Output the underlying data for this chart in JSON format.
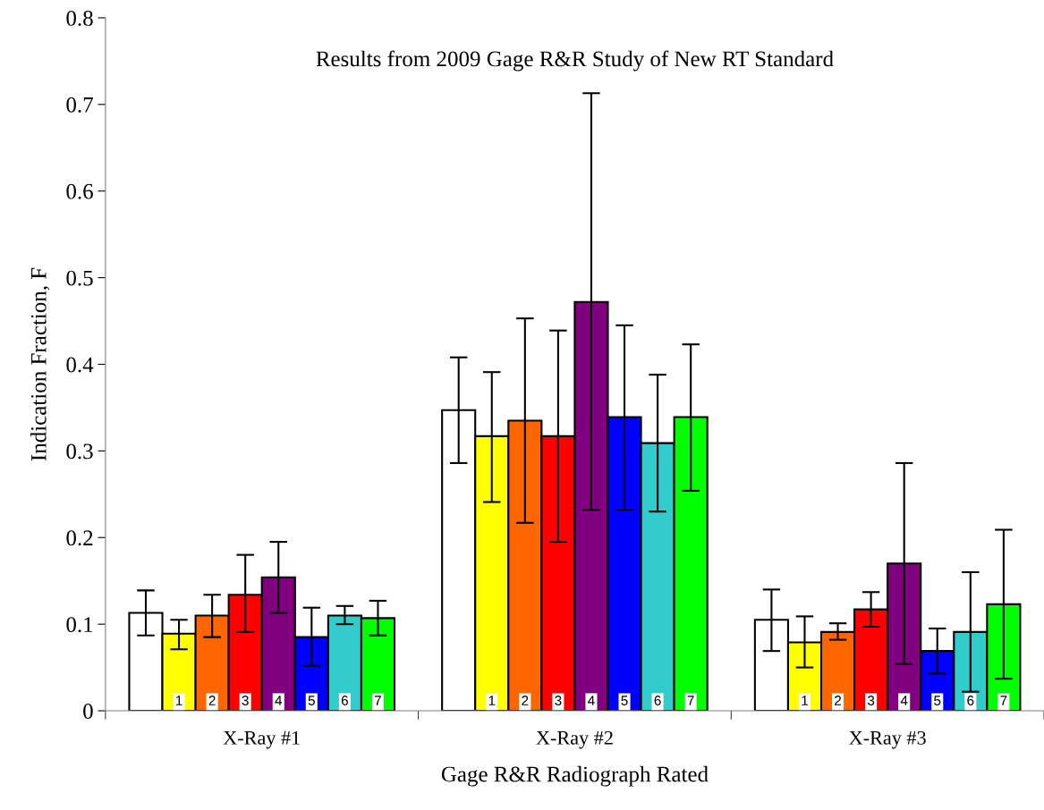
{
  "chart_data": {
    "type": "bar",
    "title": "Results from 2009 Gage R&R Study of New RT Standard",
    "xlabel": "Gage R&R Radiograph Rated",
    "ylabel": "Indication Fraction, F",
    "categories": [
      "X-Ray #1",
      "X-Ray #2",
      "X-Ray #3"
    ],
    "ylim": [
      0,
      0.8
    ],
    "yticks": [
      0,
      0.1,
      0.2,
      0.3,
      0.4,
      0.5,
      0.6,
      0.7,
      0.8
    ],
    "grid": false,
    "legend": false,
    "series": [
      {
        "color": "#ffffff",
        "values": [
          0.113,
          0.347,
          0.105
        ],
        "errors": [
          [
            0.087,
            0.139
          ],
          [
            0.286,
            0.408
          ],
          [
            0.069,
            0.14
          ]
        ]
      },
      {
        "name": "1",
        "color": "#ffff00",
        "values": [
          0.089,
          0.317,
          0.079
        ],
        "errors": [
          [
            0.071,
            0.105
          ],
          [
            0.241,
            0.391
          ],
          [
            0.05,
            0.109
          ]
        ]
      },
      {
        "name": "2",
        "color": "#ff6600",
        "values": [
          0.11,
          0.335,
          0.091
        ],
        "errors": [
          [
            0.085,
            0.134
          ],
          [
            0.217,
            0.453
          ],
          [
            0.082,
            0.101
          ]
        ]
      },
      {
        "name": "3",
        "color": "#ff0000",
        "values": [
          0.134,
          0.317,
          0.117
        ],
        "errors": [
          [
            0.091,
            0.18
          ],
          [
            0.195,
            0.439
          ],
          [
            0.097,
            0.137
          ]
        ]
      },
      {
        "name": "4",
        "color": "#800080",
        "values": [
          0.154,
          0.472,
          0.17
        ],
        "errors": [
          [
            0.113,
            0.195
          ],
          [
            0.232,
            0.713
          ],
          [
            0.054,
            0.286
          ]
        ]
      },
      {
        "name": "5",
        "color": "#0000ff",
        "values": [
          0.085,
          0.339,
          0.069
        ],
        "errors": [
          [
            0.052,
            0.119
          ],
          [
            0.232,
            0.445
          ],
          [
            0.043,
            0.095
          ]
        ]
      },
      {
        "name": "6",
        "color": "#33cccc",
        "values": [
          0.11,
          0.309,
          0.091
        ],
        "errors": [
          [
            0.1,
            0.121
          ],
          [
            0.23,
            0.388
          ],
          [
            0.022,
            0.16
          ]
        ]
      },
      {
        "name": "7",
        "color": "#00ff00",
        "values": [
          0.107,
          0.339,
          0.123
        ],
        "errors": [
          [
            0.087,
            0.127
          ],
          [
            0.254,
            0.423
          ],
          [
            0.037,
            0.209
          ]
        ]
      }
    ]
  }
}
